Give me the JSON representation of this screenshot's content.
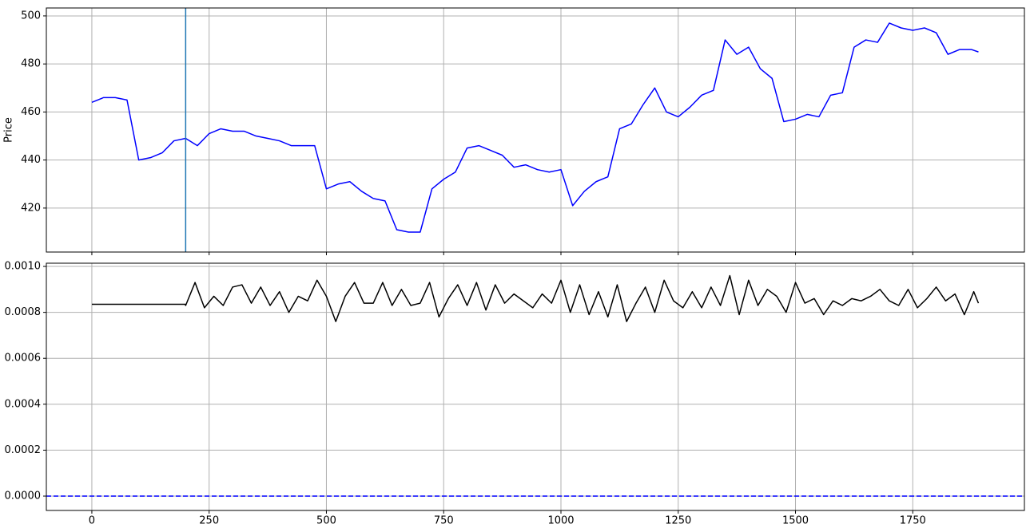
{
  "chart_data": [
    {
      "type": "line",
      "ylabel": "Price",
      "x": [
        0,
        25,
        50,
        75,
        100,
        125,
        150,
        175,
        200,
        225,
        250,
        275,
        300,
        325,
        350,
        375,
        400,
        425,
        450,
        475,
        500,
        525,
        550,
        575,
        600,
        625,
        650,
        675,
        700,
        725,
        750,
        775,
        800,
        825,
        850,
        875,
        900,
        925,
        950,
        975,
        1000,
        1025,
        1050,
        1075,
        1100,
        1125,
        1150,
        1175,
        1200,
        1225,
        1250,
        1275,
        1300,
        1325,
        1350,
        1375,
        1400,
        1425,
        1450,
        1475,
        1500,
        1525,
        1550,
        1575,
        1600,
        1625,
        1650,
        1675,
        1700,
        1725,
        1750,
        1775,
        1800,
        1825,
        1850,
        1875,
        1890
      ],
      "series": [
        {
          "color": "#0000ff",
          "values": [
            464,
            466,
            466,
            465,
            440,
            441,
            443,
            448,
            449,
            446,
            451,
            453,
            452,
            452,
            450,
            449,
            448,
            446,
            446,
            446,
            428,
            430,
            431,
            427,
            424,
            423,
            411,
            410,
            410,
            428,
            432,
            435,
            445,
            446,
            444,
            442,
            437,
            438,
            436,
            435,
            436,
            421,
            427,
            431,
            433,
            453,
            455,
            463,
            470,
            460,
            458,
            462,
            467,
            469,
            490,
            484,
            487,
            478,
            474,
            456,
            457,
            459,
            458,
            467,
            468,
            487,
            490,
            489,
            497,
            495,
            494,
            495,
            493,
            484,
            486,
            486,
            485
          ]
        }
      ],
      "vlines": [
        200
      ],
      "vline_color": "#1f77b4",
      "xlim": [
        -97,
        1988
      ],
      "xticks": [
        0,
        250,
        500,
        750,
        1000,
        1250,
        1500,
        1750
      ],
      "show_xtick_labels": false,
      "ylim": [
        401.7,
        503.3
      ],
      "yticks": [
        420,
        440,
        460,
        480,
        500
      ],
      "grid": true
    },
    {
      "type": "line",
      "x": [
        0,
        199,
        200,
        220,
        240,
        260,
        280,
        300,
        320,
        340,
        360,
        380,
        400,
        420,
        440,
        460,
        480,
        500,
        520,
        540,
        560,
        580,
        600,
        620,
        640,
        660,
        680,
        700,
        720,
        740,
        760,
        780,
        800,
        820,
        840,
        860,
        880,
        900,
        920,
        940,
        960,
        980,
        1000,
        1020,
        1040,
        1060,
        1080,
        1100,
        1120,
        1140,
        1160,
        1180,
        1200,
        1220,
        1240,
        1260,
        1280,
        1300,
        1320,
        1340,
        1360,
        1380,
        1400,
        1420,
        1440,
        1460,
        1480,
        1500,
        1520,
        1540,
        1560,
        1580,
        1600,
        1620,
        1640,
        1660,
        1680,
        1700,
        1720,
        1740,
        1760,
        1780,
        1800,
        1820,
        1840,
        1860,
        1880,
        1890
      ],
      "series": [
        {
          "color": "#000000",
          "values": [
            0.000835,
            0.000835,
            0.00083,
            0.00093,
            0.00082,
            0.00087,
            0.00083,
            0.00091,
            0.00092,
            0.00084,
            0.00091,
            0.00083,
            0.00089,
            0.0008,
            0.00087,
            0.00085,
            0.00094,
            0.00087,
            0.00076,
            0.00087,
            0.00093,
            0.00084,
            0.00084,
            0.00093,
            0.00083,
            0.0009,
            0.00083,
            0.00084,
            0.00093,
            0.00078,
            0.00086,
            0.00092,
            0.00083,
            0.00093,
            0.00081,
            0.00092,
            0.00084,
            0.00088,
            0.00085,
            0.00082,
            0.00088,
            0.00084,
            0.00094,
            0.0008,
            0.00092,
            0.00079,
            0.00089,
            0.00078,
            0.00092,
            0.00076,
            0.00084,
            0.00091,
            0.0008,
            0.00094,
            0.00085,
            0.00082,
            0.00089,
            0.00082,
            0.00091,
            0.00083,
            0.00096,
            0.00079,
            0.00094,
            0.00083,
            0.0009,
            0.00087,
            0.0008,
            0.00093,
            0.00084,
            0.00086,
            0.00079,
            0.00085,
            0.00083,
            0.00086,
            0.00085,
            0.00087,
            0.0009,
            0.00085,
            0.00083,
            0.0009,
            0.00082,
            0.00086,
            0.00091,
            0.00085,
            0.00088,
            0.00079,
            0.00089,
            0.00084
          ]
        }
      ],
      "hlines": [
        0
      ],
      "hline_color": "#0000ff",
      "xlim": [
        -97,
        1988
      ],
      "xticks": [
        0,
        250,
        500,
        750,
        1000,
        1250,
        1500,
        1750
      ],
      "show_xtick_labels": true,
      "ylim": [
        -6.25e-05,
        0.001014
      ],
      "yticks": [
        {
          "value": 0,
          "label": "0.0000"
        },
        {
          "value": 0.0002,
          "label": "0.0002"
        },
        {
          "value": 0.0004,
          "label": "0.0004"
        },
        {
          "value": 0.0006,
          "label": "0.0006"
        },
        {
          "value": 0.0008,
          "label": "0.0008"
        },
        {
          "value": 0.001,
          "label": "0.0010"
        }
      ],
      "grid": true
    }
  ]
}
